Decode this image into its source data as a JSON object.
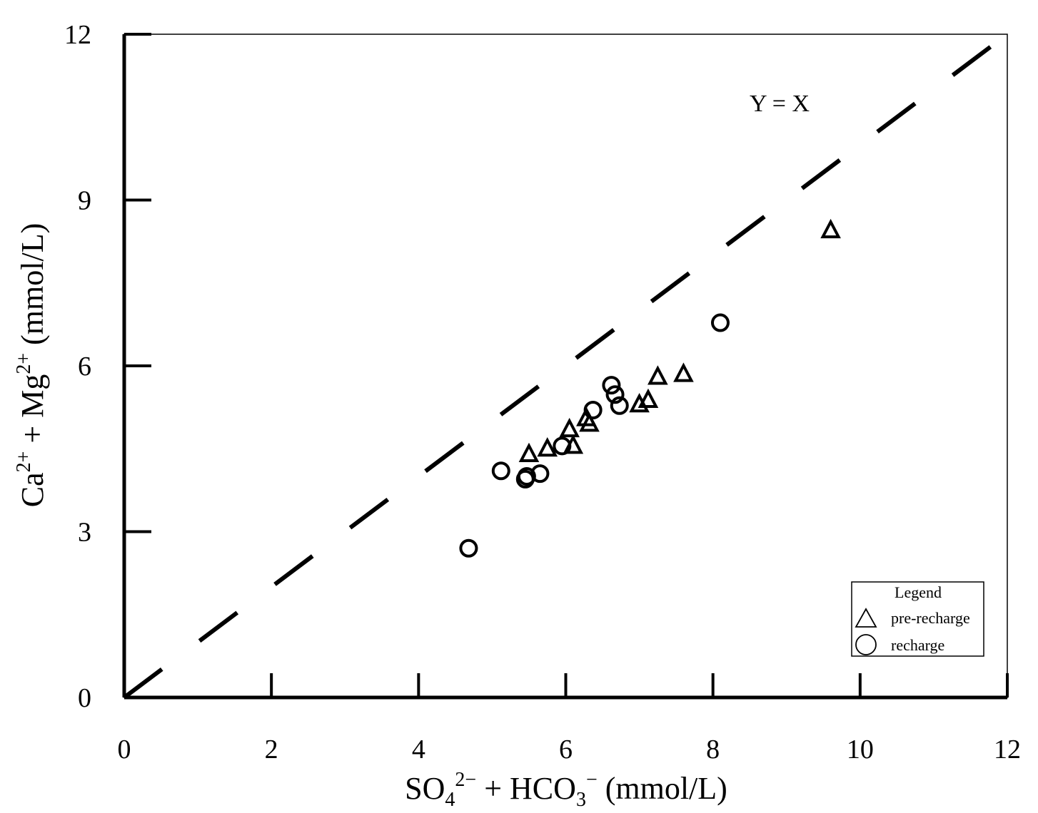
{
  "chart_data": {
    "type": "scatter",
    "xlabel": {
      "base": "SO",
      "sub1": "4",
      "sup1": "2−",
      "mid": " + HCO",
      "sub2": "3",
      "sup2": "−",
      "tail": " (mmol/L)"
    },
    "ylabel": {
      "base": "Ca",
      "sup1": "2+",
      "mid": " + Mg",
      "sup2": "2+",
      "tail": " (mmol/L)"
    },
    "xlim": [
      0,
      12
    ],
    "ylim": [
      0,
      12
    ],
    "xticks": [
      0,
      2,
      4,
      6,
      8,
      10,
      12
    ],
    "yticks": [
      0,
      3,
      6,
      9,
      12
    ],
    "xtick_labels": [
      "0",
      "2",
      "4",
      "6",
      "8",
      "10",
      "12"
    ],
    "ytick_labels": [
      "0",
      "3",
      "6",
      "9",
      "12"
    ],
    "reference_line": {
      "label": "Y = X",
      "x": [
        0,
        12
      ],
      "y": [
        0,
        12
      ]
    },
    "legend": {
      "title": "Legend",
      "position": "bottom-right"
    },
    "series": [
      {
        "name": "pre-recharge",
        "marker": "triangle",
        "x": [
          5.5,
          5.75,
          6.05,
          6.1,
          6.28,
          6.32,
          7.0,
          7.12,
          7.25,
          7.6,
          9.6
        ],
        "y": [
          4.4,
          4.5,
          4.85,
          4.55,
          5.05,
          4.95,
          5.3,
          5.38,
          5.8,
          5.85,
          8.45
        ]
      },
      {
        "name": "recharge",
        "marker": "circle",
        "x": [
          4.68,
          5.12,
          5.45,
          5.47,
          5.65,
          5.95,
          6.37,
          6.62,
          6.67,
          6.73,
          8.1
        ],
        "y": [
          2.7,
          4.1,
          3.95,
          4.0,
          4.05,
          4.55,
          5.2,
          5.65,
          5.48,
          5.28,
          6.78
        ]
      }
    ]
  }
}
